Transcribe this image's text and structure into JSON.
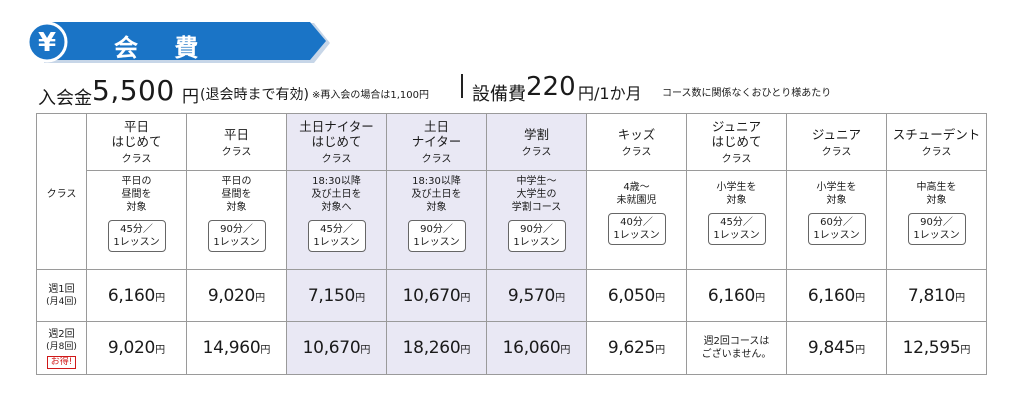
{
  "header": {
    "title": "会 費",
    "icon_symbol": "¥",
    "brand_color": "#1a74c6",
    "accent_color": "#c7d6e8"
  },
  "fees": {
    "entry_label": "入会金",
    "entry_value": "5,500",
    "entry_unit": "円",
    "entry_note": "(退会時まで有効)",
    "readmission_note": "※再入会の場合は1,100円",
    "equipment_label": "設備費",
    "equipment_value": "220",
    "equipment_unit": "円",
    "equipment_period": "/1か月",
    "equipment_note": "コース数に関係なくおひとり様あたり"
  },
  "table": {
    "class_label": "クラス",
    "classes": [
      {
        "name1": "平日",
        "name2": "はじめて",
        "sub": "クラス",
        "t1": "平日の",
        "t2": "昼間を",
        "t3": "対象",
        "d1": "45分／",
        "d2": "1レッスン",
        "w1": "6,160",
        "w2": "9,020",
        "shaded": false
      },
      {
        "name1": "平日",
        "name2": "",
        "sub": "クラス",
        "t1": "平日の",
        "t2": "昼間を",
        "t3": "対象",
        "d1": "90分／",
        "d2": "1レッスン",
        "w1": "9,020",
        "w2": "14,960",
        "shaded": false
      },
      {
        "name1": "土日ナイター",
        "name2": "はじめて",
        "sub": "クラス",
        "t1": "18:30以降",
        "t2": "及び土日を",
        "t3": "対象へ",
        "d1": "45分／",
        "d2": "1レッスン",
        "w1": "7,150",
        "w2": "10,670",
        "shaded": true
      },
      {
        "name1": "土日",
        "name2": "ナイター",
        "sub": "クラス",
        "t1": "18:30以降",
        "t2": "及び土日を",
        "t3": "対象",
        "d1": "90分／",
        "d2": "1レッスン",
        "w1": "10,670",
        "w2": "18,260",
        "shaded": true
      },
      {
        "name1": "学割",
        "name2": "",
        "sub": "クラス",
        "t1": "中学生～",
        "t2": "大学生の",
        "t3": "学割コース",
        "d1": "90分／",
        "d2": "1レッスン",
        "w1": "9,570",
        "w2": "16,060",
        "shaded": true
      },
      {
        "name1": "キッズ",
        "name2": "",
        "sub": "クラス",
        "t1": "4歳～",
        "t2": "未就園児",
        "t3": "",
        "d1": "40分／",
        "d2": "1レッスン",
        "w1": "6,050",
        "w2": "9,625",
        "shaded": false
      },
      {
        "name1": "ジュニア",
        "name2": "はじめて",
        "sub": "クラス",
        "t1": "小学生を",
        "t2": "対象",
        "t3": "",
        "d1": "45分／",
        "d2": "1レッスン",
        "w1": "6,160",
        "w2": "",
        "shaded": false
      },
      {
        "name1": "ジュニア",
        "name2": "",
        "sub": "クラス",
        "t1": "小学生を",
        "t2": "対象",
        "t3": "",
        "d1": "60分／",
        "d2": "1レッスン",
        "w1": "6,160",
        "w2": "9,845",
        "shaded": false
      },
      {
        "name1": "スチューデント",
        "name2": "",
        "sub": "クラス",
        "t1": "中高生を",
        "t2": "対象",
        "t3": "",
        "d1": "90分／",
        "d2": "1レッスン",
        "w1": "7,810",
        "w2": "12,595",
        "shaded": false
      }
    ],
    "yen": "円",
    "week1_label": "週1回",
    "week1_sub": "(月4回)",
    "week2_label": "週2回",
    "week2_sub": "(月8回)",
    "deal_badge": "お得!",
    "unavailable_1": "週2回コースは",
    "unavailable_2": "ございません。"
  }
}
